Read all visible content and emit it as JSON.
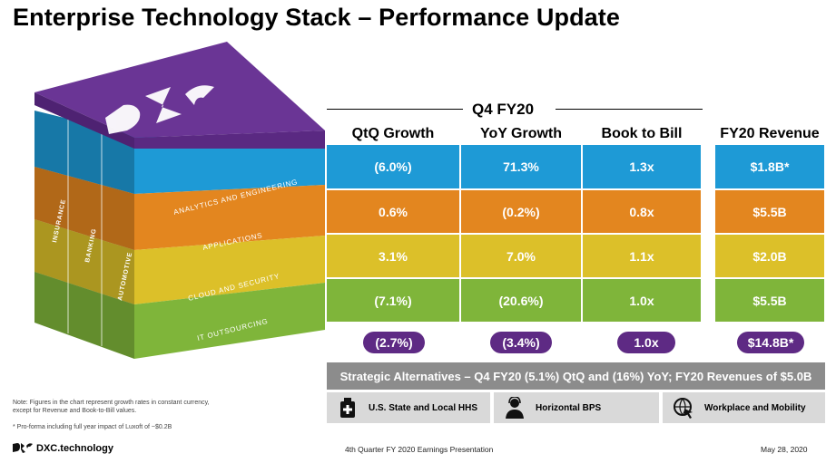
{
  "title": "Enterprise Technology Stack – Performance Update",
  "cube": {
    "layers": [
      {
        "label": "ANALYTICS AND ENGINEERING",
        "color": "#1e9ad6"
      },
      {
        "label": "APPLICATIONS",
        "color": "#e3861f"
      },
      {
        "label": "CLOUD AND SECURITY",
        "color": "#dcc029"
      },
      {
        "label": "IT OUTSOURCING",
        "color": "#7fb53a"
      }
    ],
    "verticals": [
      "INSURANCE",
      "BANKING",
      "AUTOMOTIVE"
    ],
    "top_color": "#6a3595"
  },
  "period": "Q4 FY20",
  "columns": [
    "QtQ Growth",
    "YoY Growth",
    "Book to Bill",
    "FY20 Revenue"
  ],
  "rows": [
    {
      "color": "#1e9ad6",
      "values": [
        "(6.0%)",
        "71.3%",
        "1.3x",
        "$1.8B*"
      ]
    },
    {
      "color": "#e3861f",
      "values": [
        "0.6%",
        "(0.2%)",
        "0.8x",
        "$5.5B"
      ]
    },
    {
      "color": "#dcc029",
      "values": [
        "3.1%",
        "7.0%",
        "1.1x",
        "$2.0B"
      ]
    },
    {
      "color": "#7fb53a",
      "values": [
        "(7.1%)",
        "(20.6%)",
        "1.0x",
        "$5.5B"
      ]
    }
  ],
  "totals": [
    "(2.7%)",
    "(3.4%)",
    "1.0x",
    "$14.8B*"
  ],
  "strategic": "Strategic Alternatives – Q4 FY20 (5.1%) QtQ and (16%) YoY; FY20 Revenues of $5.0B",
  "divisions": [
    {
      "label": "U.S. State and Local HHS",
      "icon": "medical-kit-icon"
    },
    {
      "label": "Horizontal BPS",
      "icon": "headset-person-icon"
    },
    {
      "label": "Workplace and Mobility",
      "icon": "globe-cursor-icon"
    }
  ],
  "notes": {
    "note1": "Note: Figures in the chart represent growth rates in constant currency, except for Revenue and Book-to-Bill values.",
    "note2": "* Pro-forma including full year impact of Luxoft of ~$0.2B"
  },
  "footer": {
    "brand": "DXC.technology",
    "presentation": "4th Quarter FY 2020 Earnings Presentation",
    "date": "May 28, 2020"
  }
}
